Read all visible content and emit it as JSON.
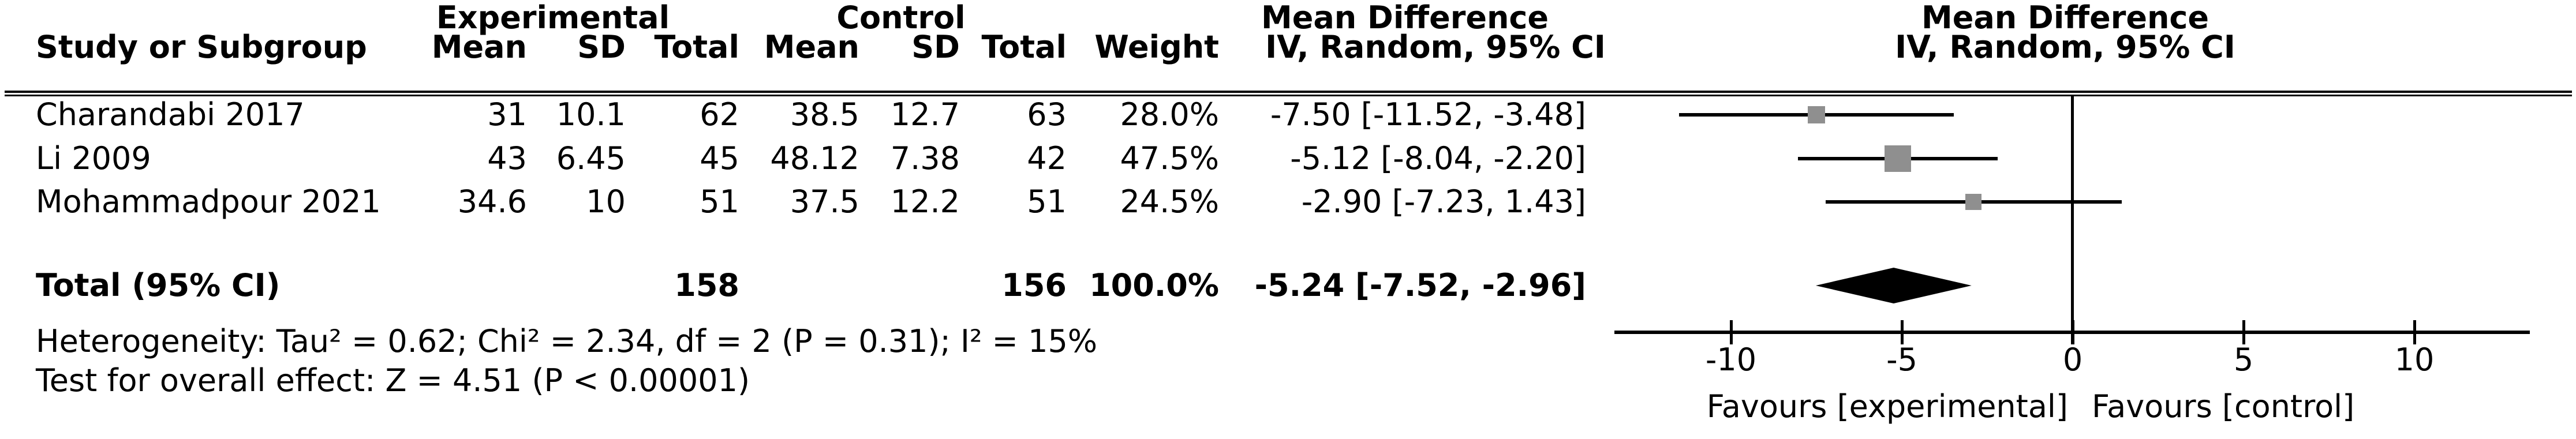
{
  "chart_data": {
    "type": "forest",
    "effect_measure": "Mean Difference",
    "model": "IV, Random, 95% CI",
    "studies": [
      {
        "name": "Charandabi 2017",
        "exp_mean": "31",
        "exp_sd": "10.1",
        "exp_total": "62",
        "ctrl_mean": "38.5",
        "ctrl_sd": "12.7",
        "ctrl_total": "63",
        "weight": "28.0%",
        "weight_pct": 28.0,
        "md_ci": "-7.50 [-11.52, -3.48]",
        "md": -7.5,
        "ci_low": -11.52,
        "ci_high": -3.48
      },
      {
        "name": "Li 2009",
        "exp_mean": "43",
        "exp_sd": "6.45",
        "exp_total": "45",
        "ctrl_mean": "48.12",
        "ctrl_sd": "7.38",
        "ctrl_total": "42",
        "weight": "47.5%",
        "weight_pct": 47.5,
        "md_ci": "-5.12 [-8.04, -2.20]",
        "md": -5.12,
        "ci_low": -8.04,
        "ci_high": -2.2
      },
      {
        "name": "Mohammadpour 2021",
        "exp_mean": "34.6",
        "exp_sd": "10",
        "exp_total": "51",
        "ctrl_mean": "37.5",
        "ctrl_sd": "12.2",
        "ctrl_total": "51",
        "weight": "24.5%",
        "weight_pct": 24.5,
        "md_ci": "-2.90 [-7.23, 1.43]",
        "md": -2.9,
        "ci_low": -7.23,
        "ci_high": 1.43
      }
    ],
    "total": {
      "label": "Total (95% CI)",
      "exp_total": "158",
      "ctrl_total": "156",
      "weight": "100.0%",
      "md_ci": "-5.24 [-7.52, -2.96]",
      "md": -5.24,
      "ci_low": -7.52,
      "ci_high": -2.96
    },
    "heterogeneity": "Heterogeneity: Tau² = 0.62; Chi² = 2.34, df = 2 (P = 0.31); I² = 15%",
    "overall_effect": "Test for overall effect: Z = 4.51 (P < 0.00001)",
    "axis": {
      "ticks": [
        "-10",
        "-5",
        "0",
        "5",
        "10"
      ],
      "tick_values": [
        -10,
        -5,
        0,
        5,
        10
      ],
      "xlim": [
        -13.4,
        13.4
      ],
      "favours_left": "Favours [experimental]",
      "favours_right": "Favours [control]"
    }
  },
  "header": {
    "group_experimental": "Experimental",
    "group_control": "Control",
    "study": "Study or Subgroup",
    "mean": "Mean",
    "sd": "SD",
    "total": "Total",
    "weight": "Weight",
    "md_line1": "Mean Difference",
    "md_line2": "IV, Random, 95% CI",
    "md_plot_line1": "Mean Difference",
    "md_plot_line2": "IV, Random, 95% CI"
  },
  "colors": {
    "ink": "#000000",
    "marker_gray": "#8f8f8f",
    "background": "#ffffff"
  }
}
